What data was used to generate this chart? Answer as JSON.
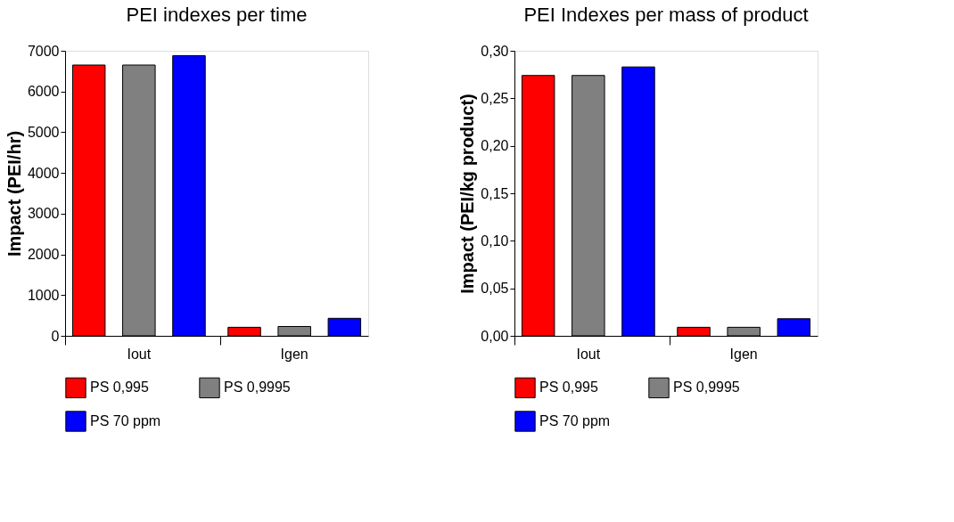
{
  "chart_data": [
    {
      "type": "bar",
      "title": "PEI indexes per time",
      "ylabel": "Impact (PEI/hr)",
      "categories": [
        "Iout",
        "Igen"
      ],
      "ylim": [
        0,
        7000
      ],
      "yticks": [
        0,
        1000,
        2000,
        3000,
        4000,
        5000,
        6000,
        7000
      ],
      "legend": "bottom",
      "grid": false,
      "series": [
        {
          "name": "PS 0,995",
          "color": "#ff0000",
          "values": [
            6650,
            210
          ]
        },
        {
          "name": "PS 0,9995",
          "color": "#808080",
          "values": [
            6650,
            230
          ]
        },
        {
          "name": "PS 70 ppm",
          "color": "#0000ff",
          "values": [
            6880,
            430
          ]
        }
      ]
    },
    {
      "type": "bar",
      "title": "PEI Indexes per mass of product",
      "ylabel": "Impact (PEI/kg product)",
      "categories": [
        "Iout",
        "Igen"
      ],
      "ylim": [
        0,
        0.3
      ],
      "legend": "bottom",
      "grid": false,
      "yticks": [
        {
          "value": 0,
          "label": "0,00"
        },
        {
          "value": 0.05,
          "label": "0,05"
        },
        {
          "value": 0.1,
          "label": "0,10"
        },
        {
          "value": 0.15,
          "label": "0,15"
        },
        {
          "value": 0.2,
          "label": "0,20"
        },
        {
          "value": 0.25,
          "label": "0,25"
        },
        {
          "value": 0.3,
          "label": "0,30"
        }
      ],
      "series": [
        {
          "name": "PS 0,995",
          "color": "#ff0000",
          "values": [
            0.274,
            0.009
          ]
        },
        {
          "name": "PS 0,9995",
          "color": "#808080",
          "values": [
            0.274,
            0.009
          ]
        },
        {
          "name": "PS 70 ppm",
          "color": "#0000ff",
          "values": [
            0.283,
            0.018
          ]
        }
      ]
    }
  ]
}
